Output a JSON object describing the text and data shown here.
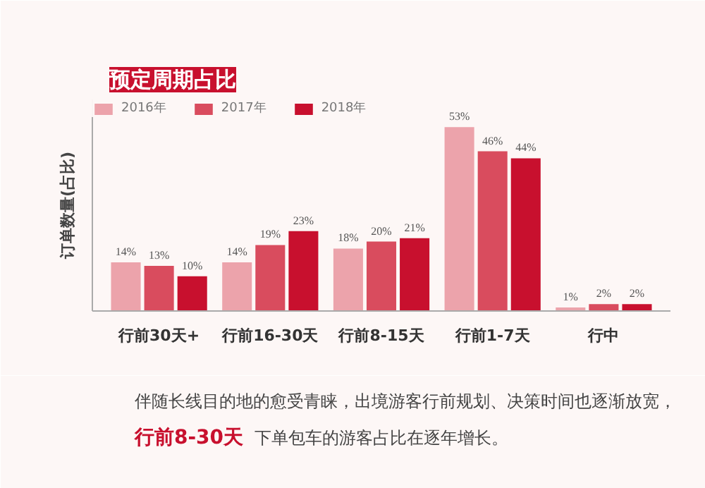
{
  "chart_data": {
    "type": "bar",
    "title": "预定周期占比",
    "ylabel": "订单数量(占比)",
    "categories": [
      "行前30天+",
      "行前16-30天",
      "行前8-15天",
      "行前1-7天",
      "行中"
    ],
    "series": [
      {
        "name": "2016年",
        "color": "#eca3ab",
        "values": [
          14,
          14,
          18,
          53,
          1
        ],
        "value_labels": [
          "14%",
          "14%",
          "18%",
          "53%",
          "1%"
        ]
      },
      {
        "name": "2017年",
        "color": "#d94c5e",
        "values": [
          13,
          19,
          20,
          46,
          2
        ],
        "value_labels": [
          "13%",
          "19%",
          "20%",
          "46%",
          "2%"
        ]
      },
      {
        "name": "2018年",
        "color": "#c8102e",
        "values": [
          10,
          23,
          21,
          44,
          2
        ],
        "value_labels": [
          "10%",
          "23%",
          "21%",
          "44%",
          "2%"
        ]
      }
    ],
    "legend": "top left",
    "tick_labels": "x",
    "grid": false,
    "annotations": [
      "伴随长线目的地的愈受青睐，出境游客行前规划、决策时间也逐渐放宽，",
      "行前8-30天",
      "下单包车的游客占比在逐年增长。"
    ]
  }
}
